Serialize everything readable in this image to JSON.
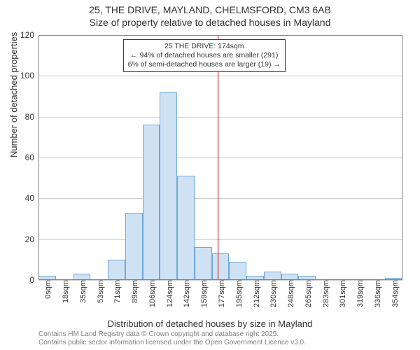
{
  "title": {
    "line1": "25, THE DRIVE, MAYLAND, CHELMSFORD, CM3 6AB",
    "line2": "Size of property relative to detached houses in Mayland"
  },
  "chart": {
    "type": "histogram",
    "background_color": "#ffffff",
    "plot_border_color": "#808080",
    "grid_color": "#cccccc",
    "bar_fill": "#cfe2f3",
    "bar_stroke": "#6fa8dc",
    "ylim": [
      0,
      120
    ],
    "ytick_step": 20,
    "yticks": [
      0,
      20,
      40,
      60,
      80,
      100,
      120
    ],
    "ylabel": "Number of detached properties",
    "xlabel": "Distribution of detached houses by size in Mayland",
    "xticks": [
      "0sqm",
      "18sqm",
      "35sqm",
      "53sqm",
      "71sqm",
      "89sqm",
      "106sqm",
      "124sqm",
      "142sqm",
      "159sqm",
      "177sqm",
      "195sqm",
      "212sqm",
      "230sqm",
      "248sqm",
      "265sqm",
      "283sqm",
      "301sqm",
      "319sqm",
      "336sqm",
      "354sqm"
    ],
    "values": [
      2,
      0,
      3,
      0,
      10,
      33,
      76,
      92,
      51,
      16,
      13,
      9,
      2,
      4,
      3,
      2,
      0,
      0,
      0,
      0,
      1
    ],
    "label_fontsize": 13,
    "tick_fontsize": 12
  },
  "reference": {
    "x_value": 174,
    "x_max": 354,
    "line_color": "#cc0000",
    "box_border": "#cc0000",
    "line1": "25 THE DRIVE: 174sqm",
    "line2": "← 94% of detached houses are smaller (291)",
    "line3": "6% of semi-detached houses are larger (19) →"
  },
  "footer": {
    "line1": "Contains HM Land Registry data © Crown copyright and database right 2025.",
    "line2": "Contains public sector information licensed under the Open Government Licence v3.0."
  }
}
